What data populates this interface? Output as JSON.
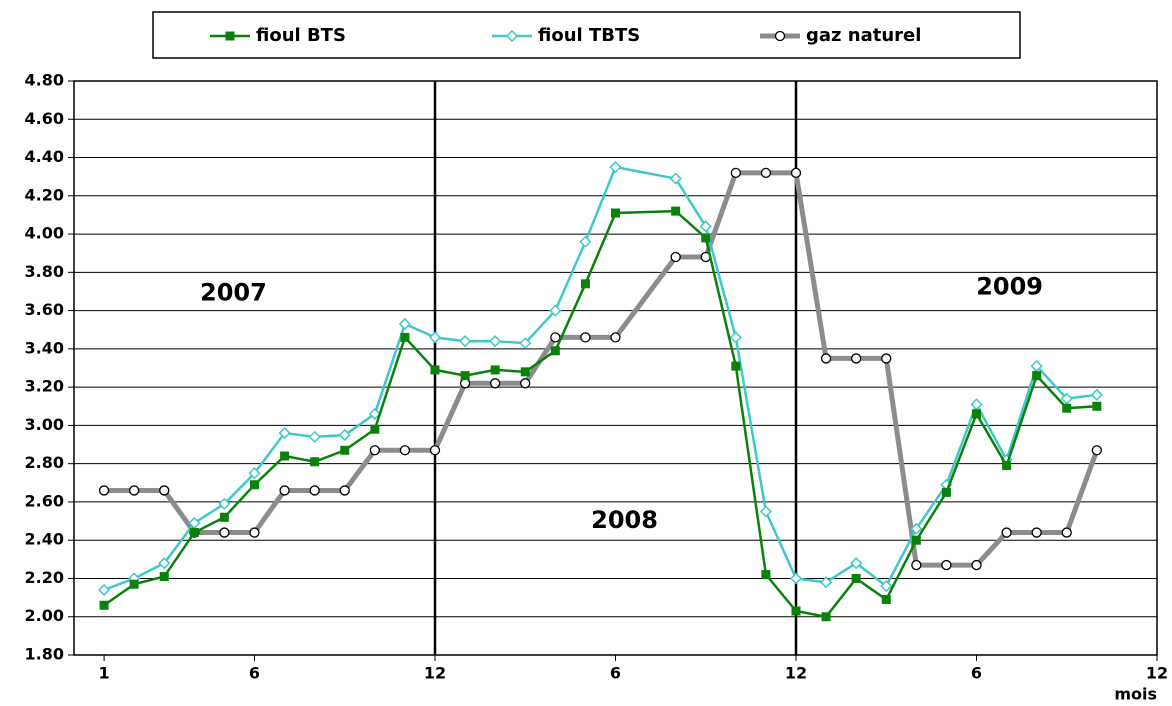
{
  "chart_data": {
    "type": "line",
    "x": [
      1,
      2,
      3,
      4,
      5,
      6,
      7,
      8,
      9,
      10,
      11,
      12,
      13,
      14,
      15,
      16,
      17,
      18,
      20,
      21,
      22,
      23,
      24,
      25,
      26,
      27,
      28,
      29,
      30,
      31,
      32,
      33,
      34
    ],
    "series": [
      {
        "name": "fioul BTS",
        "color": "#0a820a",
        "marker": "square",
        "values": [
          2.06,
          2.17,
          2.21,
          2.44,
          2.52,
          2.69,
          2.84,
          2.81,
          2.87,
          2.98,
          3.46,
          3.29,
          3.26,
          3.29,
          3.28,
          3.39,
          3.74,
          4.11,
          4.12,
          3.98,
          3.31,
          2.22,
          2.03,
          2.0,
          2.2,
          2.09,
          2.4,
          2.65,
          3.06,
          2.79,
          3.26,
          3.09,
          3.1
        ]
      },
      {
        "name": "fioul TBTS",
        "color": "#40c8c8",
        "marker": "diamond",
        "values": [
          2.14,
          2.2,
          2.28,
          2.49,
          2.59,
          2.75,
          2.96,
          2.94,
          2.95,
          3.06,
          3.53,
          3.46,
          3.44,
          3.44,
          3.43,
          3.6,
          3.96,
          4.35,
          4.29,
          4.04,
          3.46,
          2.55,
          2.2,
          2.18,
          2.28,
          2.16,
          2.46,
          2.69,
          3.11,
          2.82,
          3.31,
          3.14,
          3.16
        ]
      },
      {
        "name": "gaz naturel",
        "color": "#8c8c8c",
        "marker": "circle",
        "values": [
          2.66,
          2.66,
          2.66,
          2.44,
          2.44,
          2.44,
          2.66,
          2.66,
          2.66,
          2.87,
          2.87,
          2.87,
          3.22,
          3.22,
          3.22,
          3.46,
          3.46,
          3.46,
          3.88,
          3.88,
          4.32,
          4.32,
          4.32,
          3.35,
          3.35,
          3.35,
          2.27,
          2.27,
          2.27,
          2.44,
          2.44,
          2.44,
          2.87
        ]
      }
    ],
    "xlim": [
      0,
      36
    ],
    "xticks": [
      1,
      6,
      12,
      {
        "value": 18,
        "label": "6"
      },
      {
        "value": 24,
        "label": "12"
      },
      {
        "value": 30,
        "label": "6"
      },
      {
        "value": 36,
        "label": "12"
      }
    ],
    "xlabel": "mois",
    "ylim": [
      1.8,
      4.8
    ],
    "yticks": [
      {
        "value": 1.8,
        "label": "1.80"
      },
      {
        "value": 2.0,
        "label": "2.00"
      },
      {
        "value": 2.2,
        "label": "2.20"
      },
      {
        "value": 2.4,
        "label": "2.40"
      },
      {
        "value": 2.6,
        "label": "2.60"
      },
      {
        "value": 2.8,
        "label": "2.80"
      },
      {
        "value": 3.0,
        "label": "3.00"
      },
      {
        "value": 3.2,
        "label": "3.20"
      },
      {
        "value": 3.4,
        "label": "3.40"
      },
      {
        "value": 3.6,
        "label": "3.60"
      },
      {
        "value": 3.8,
        "label": "3.80"
      },
      {
        "value": 4.0,
        "label": "4.00"
      },
      {
        "value": 4.2,
        "label": "4.20"
      },
      {
        "value": 4.4,
        "label": "4.40"
      },
      {
        "value": 4.6,
        "label": "4.60"
      },
      {
        "value": 4.8,
        "label": "4.80"
      }
    ],
    "grid": true,
    "vlines": [
      12,
      24
    ],
    "annotations": [
      {
        "text": "2007",
        "x": 5.3,
        "y": 3.69
      },
      {
        "text": "2008",
        "x": 18.3,
        "y": 2.5
      },
      {
        "text": "2009",
        "x": 31.1,
        "y": 3.72
      }
    ],
    "legend": "top"
  }
}
